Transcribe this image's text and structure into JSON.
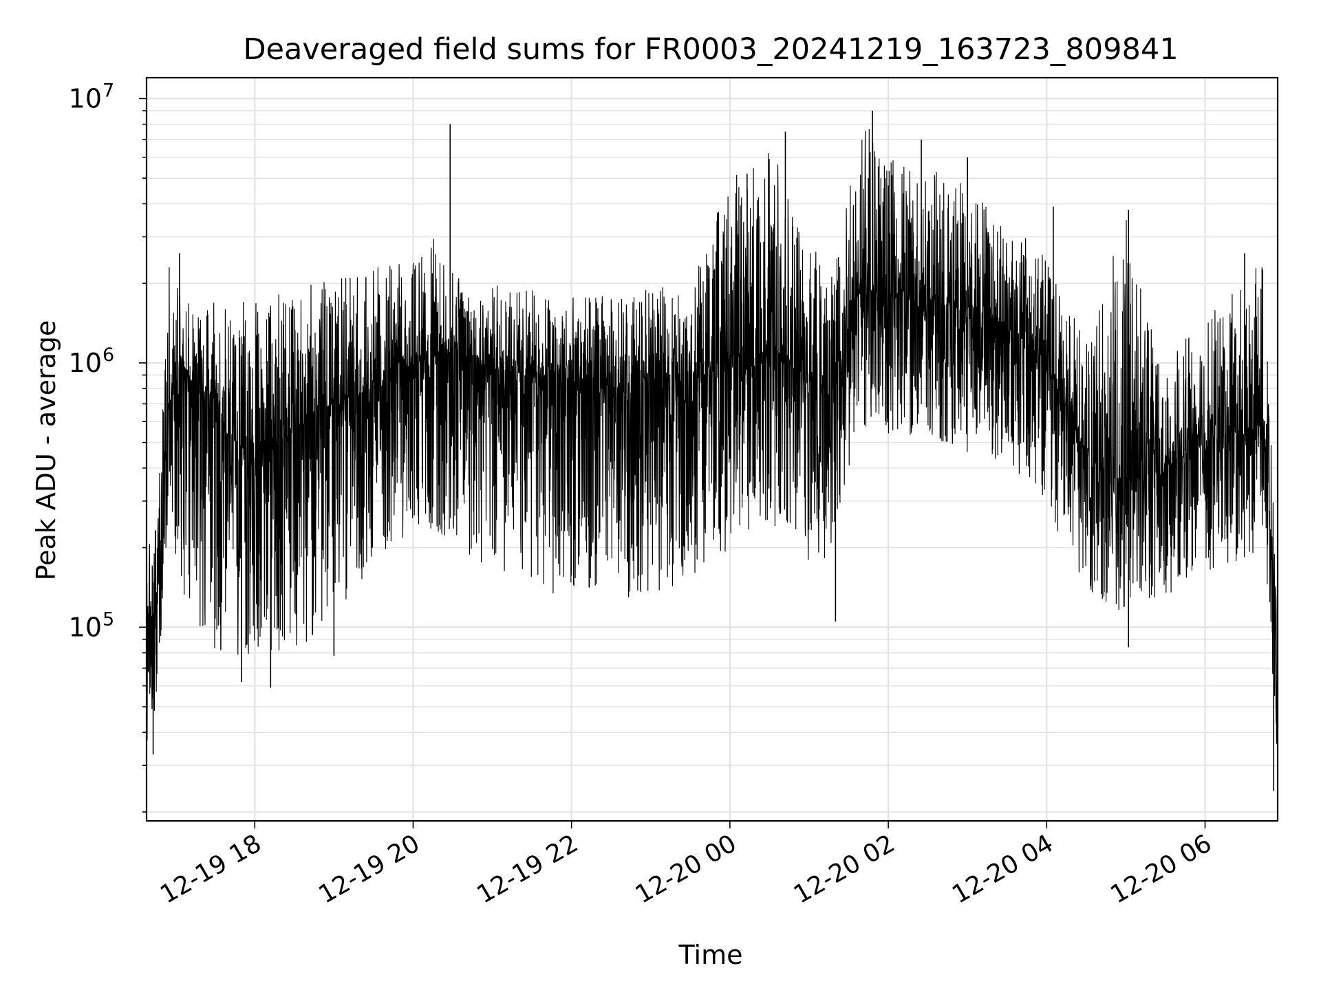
{
  "chart_data": {
    "type": "line",
    "title": "Deaveraged field sums for FR0003_20241219_163723_809841",
    "xlabel": "Time",
    "ylabel": "Peak ADU - average",
    "yscale": "log",
    "ylim": [
      18500,
      12000000
    ],
    "xlim": [
      "12-19 16:38",
      "12-20 06:55"
    ],
    "xticks": [
      "12-19 18",
      "12-19 20",
      "12-19 22",
      "12-20 00",
      "12-20 02",
      "12-20 04",
      "12-20 06"
    ],
    "yticks": [
      {
        "base": "10",
        "exp": "5",
        "value": 100000
      },
      {
        "base": "10",
        "exp": "6",
        "value": 1000000
      },
      {
        "base": "10",
        "exp": "7",
        "value": 10000000
      }
    ],
    "grid": true,
    "line_color": "#000000",
    "series": [
      {
        "name": "",
        "x": [
          "12-19 16:38",
          "12-19 16:45",
          "12-19 16:55",
          "12-19 17:05",
          "12-19 17:15",
          "12-19 17:30",
          "12-19 17:45",
          "12-19 18:00",
          "12-19 18:15",
          "12-19 18:30",
          "12-19 18:45",
          "12-19 19:00",
          "12-19 19:15",
          "12-19 19:30",
          "12-19 19:45",
          "12-19 20:00",
          "12-19 20:15",
          "12-19 20:30",
          "12-19 20:45",
          "12-19 21:00",
          "12-19 21:30",
          "12-19 22:00",
          "12-19 22:30",
          "12-19 23:00",
          "12-19 23:30",
          "12-20 00:00",
          "12-20 00:30",
          "12-20 01:00",
          "12-20 01:15",
          "12-20 01:30",
          "12-20 01:45",
          "12-20 02:00",
          "12-20 02:30",
          "12-20 03:00",
          "12-20 03:30",
          "12-20 04:00",
          "12-20 04:30",
          "12-20 05:00",
          "12-20 05:30",
          "12-20 06:00",
          "12-20 06:30",
          "12-20 06:45",
          "12-20 06:55"
        ],
        "y": [
          120000,
          110000,
          700000,
          1000000,
          800000,
          600000,
          500000,
          450000,
          500000,
          550000,
          650000,
          700000,
          750000,
          800000,
          900000,
          1000000,
          1050000,
          1150000,
          1100000,
          950000,
          900000,
          850000,
          800000,
          850000,
          900000,
          1050000,
          1100000,
          900000,
          750000,
          1700000,
          1900000,
          1800000,
          1700000,
          1600000,
          1400000,
          1000000,
          450000,
          350000,
          400000,
          500000,
          550000,
          600000,
          70000
        ],
        "y_low": [
          35000,
          50000,
          250000,
          130000,
          90000,
          80000,
          75000,
          75000,
          80000,
          85000,
          90000,
          110000,
          140000,
          170000,
          200000,
          230000,
          230000,
          200000,
          180000,
          160000,
          140000,
          130000,
          130000,
          130000,
          150000,
          200000,
          250000,
          160000,
          180000,
          400000,
          600000,
          500000,
          500000,
          450000,
          400000,
          280000,
          140000,
          110000,
          130000,
          160000,
          180000,
          200000,
          30000
        ],
        "y_high": [
          200000,
          250000,
          2500000,
          1700000,
          1700000,
          1700000,
          1700000,
          1700000,
          1800000,
          1900000,
          2000000,
          2100000,
          2200000,
          2300000,
          2400000,
          2500000,
          3000000,
          2200000,
          2100000,
          2000000,
          1900000,
          1800000,
          1800000,
          1900000,
          2000000,
          5000000,
          7000000,
          3500000,
          2500000,
          6000000,
          9000000,
          6000000,
          5500000,
          5000000,
          3500000,
          2500000,
          1200000,
          3800000,
          1000000,
          1500000,
          2000000,
          2600000,
          120000
        ]
      }
    ],
    "peaks": [
      {
        "x": "12-19 17:03",
        "y": 2600000
      },
      {
        "x": "12-19 20:28",
        "y": 8000000
      },
      {
        "x": "12-20 00:13",
        "y": 5200000
      },
      {
        "x": "12-20 00:42",
        "y": 7500000
      },
      {
        "x": "12-20 01:48",
        "y": 9000000
      },
      {
        "x": "12-20 02:25",
        "y": 7000000
      },
      {
        "x": "12-20 03:00",
        "y": 6000000
      },
      {
        "x": "12-20 04:05",
        "y": 3900000
      },
      {
        "x": "12-20 05:02",
        "y": 3800000
      },
      {
        "x": "12-20 06:30",
        "y": 2600000
      }
    ],
    "troughs": [
      {
        "x": "12-19 16:43",
        "y": 33000
      },
      {
        "x": "12-19 17:50",
        "y": 62000
      },
      {
        "x": "12-19 18:12",
        "y": 59000
      },
      {
        "x": "12-19 19:00",
        "y": 78000
      },
      {
        "x": "12-20 01:20",
        "y": 105000
      },
      {
        "x": "12-20 05:02",
        "y": 84000
      },
      {
        "x": "12-20 06:52",
        "y": 24000
      }
    ]
  }
}
